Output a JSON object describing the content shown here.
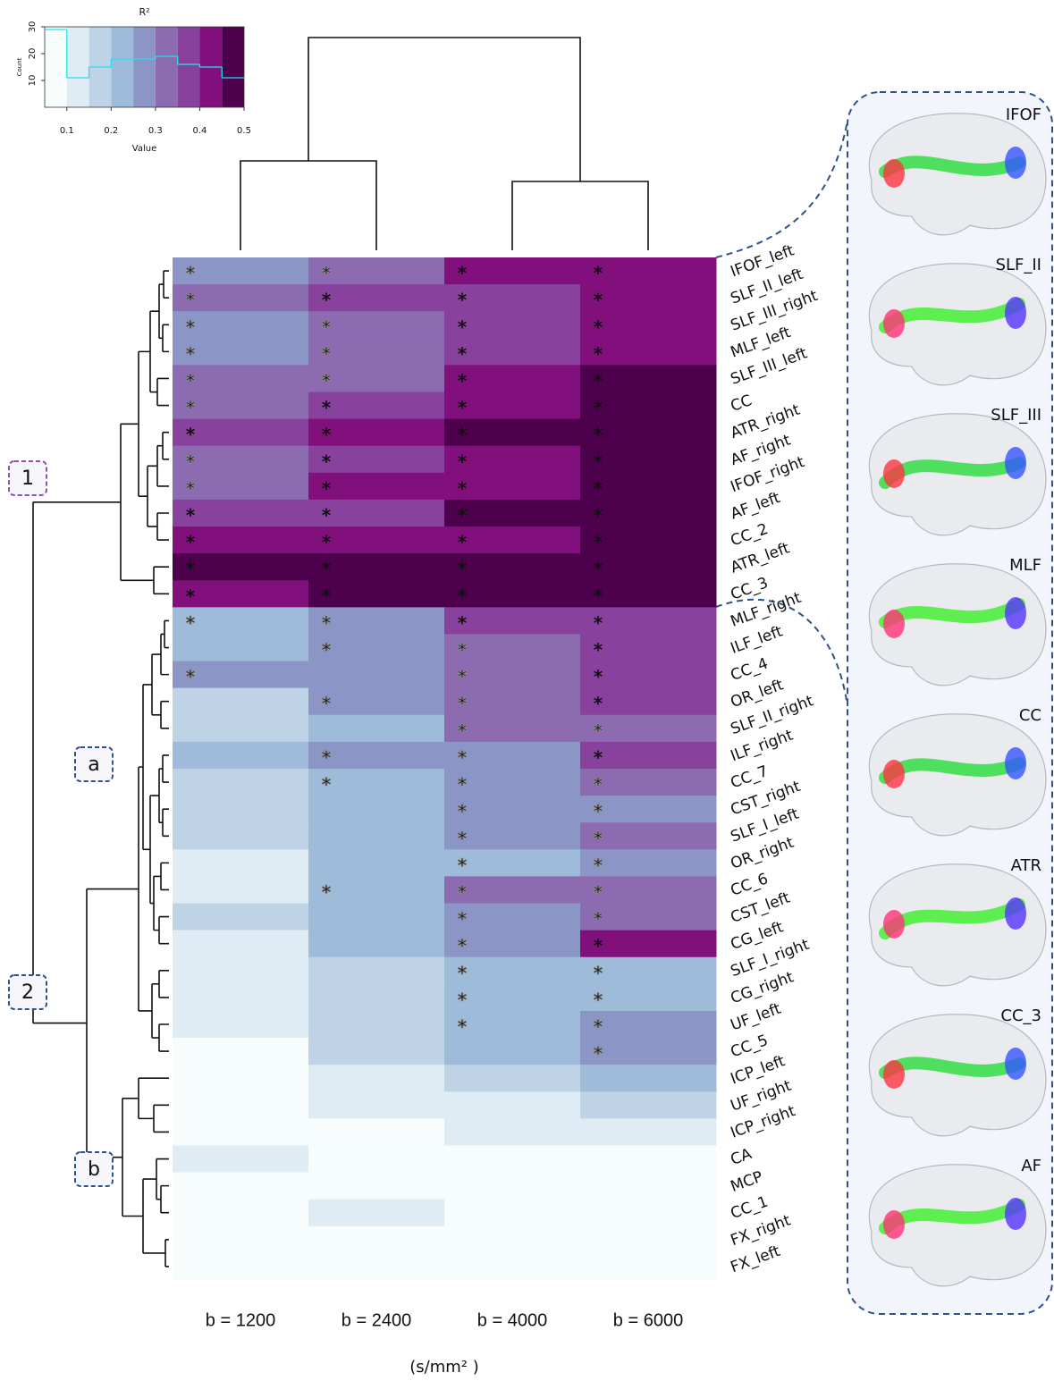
{
  "chart_data": [
    {
      "type": "heatmap",
      "x_categories": [
        "b = 1200",
        "b = 2400",
        "b = 4000",
        "b = 6000"
      ],
      "xlabel": "(s/mm² )",
      "y_categories": [
        "IFOF_left",
        "SLF_II_left",
        "SLF_III_right",
        "MLF_left",
        "SLF_III_left",
        "CC",
        "ATR_right",
        "AF_right",
        "IFOF_right",
        "AF_left",
        "CC_2",
        "ATR_left",
        "CC_3",
        "MLF_right",
        "ILF_left",
        "CC_4",
        "OR_left",
        "SLF_II_right",
        "ILF_right",
        "CC_7",
        "CST_right",
        "SLF_I_left",
        "OR_right",
        "CC_6",
        "CST_left",
        "CG_left",
        "SLF_I_right",
        "CG_right",
        "UF_left",
        "CC_5",
        "ICP_left",
        "UF_right",
        "ICP_right",
        "CA",
        "MCP",
        "CC_1",
        "FX_right",
        "FX_left"
      ],
      "values": [
        [
          0.275,
          0.325,
          0.425,
          0.425
        ],
        [
          0.325,
          0.375,
          0.375,
          0.425
        ],
        [
          0.275,
          0.325,
          0.375,
          0.425
        ],
        [
          0.275,
          0.325,
          0.375,
          0.425
        ],
        [
          0.325,
          0.325,
          0.425,
          0.475
        ],
        [
          0.325,
          0.375,
          0.425,
          0.475
        ],
        [
          0.375,
          0.425,
          0.475,
          0.475
        ],
        [
          0.325,
          0.375,
          0.425,
          0.475
        ],
        [
          0.325,
          0.425,
          0.425,
          0.475
        ],
        [
          0.375,
          0.375,
          0.475,
          0.475
        ],
        [
          0.425,
          0.425,
          0.425,
          0.475
        ],
        [
          0.475,
          0.475,
          0.475,
          0.475
        ],
        [
          0.425,
          0.475,
          0.475,
          0.475
        ],
        [
          0.225,
          0.275,
          0.375,
          0.375
        ],
        [
          0.225,
          0.275,
          0.325,
          0.375
        ],
        [
          0.275,
          0.275,
          0.325,
          0.375
        ],
        [
          0.175,
          0.275,
          0.325,
          0.375
        ],
        [
          0.175,
          0.225,
          0.325,
          0.325
        ],
        [
          0.225,
          0.275,
          0.275,
          0.375
        ],
        [
          0.175,
          0.225,
          0.275,
          0.325
        ],
        [
          0.175,
          0.225,
          0.275,
          0.275
        ],
        [
          0.175,
          0.225,
          0.275,
          0.325
        ],
        [
          0.125,
          0.225,
          0.225,
          0.275
        ],
        [
          0.125,
          0.225,
          0.325,
          0.325
        ],
        [
          0.175,
          0.225,
          0.275,
          0.325
        ],
        [
          0.125,
          0.225,
          0.275,
          0.425
        ],
        [
          0.125,
          0.175,
          0.225,
          0.225
        ],
        [
          0.125,
          0.175,
          0.225,
          0.225
        ],
        [
          0.125,
          0.175,
          0.225,
          0.275
        ],
        [
          0.075,
          0.175,
          0.225,
          0.275
        ],
        [
          0.075,
          0.125,
          0.175,
          0.225
        ],
        [
          0.075,
          0.125,
          0.125,
          0.175
        ],
        [
          0.075,
          0.075,
          0.125,
          0.125
        ],
        [
          0.125,
          0.075,
          0.075,
          0.075
        ],
        [
          0.075,
          0.075,
          0.075,
          0.075
        ],
        [
          0.075,
          0.125,
          0.075,
          0.075
        ],
        [
          0.075,
          0.075,
          0.075,
          0.075
        ],
        [
          0.075,
          0.075,
          0.075,
          0.075
        ]
      ],
      "significant": [
        [
          1,
          1,
          1,
          1
        ],
        [
          1,
          1,
          1,
          1
        ],
        [
          1,
          1,
          1,
          1
        ],
        [
          1,
          1,
          1,
          1
        ],
        [
          1,
          1,
          1,
          1
        ],
        [
          1,
          1,
          1,
          1
        ],
        [
          1,
          1,
          1,
          1
        ],
        [
          1,
          1,
          1,
          1
        ],
        [
          1,
          1,
          1,
          1
        ],
        [
          1,
          1,
          1,
          1
        ],
        [
          1,
          1,
          1,
          1
        ],
        [
          1,
          1,
          1,
          1
        ],
        [
          1,
          1,
          1,
          1
        ],
        [
          1,
          1,
          1,
          1
        ],
        [
          0,
          1,
          1,
          1
        ],
        [
          1,
          0,
          1,
          1
        ],
        [
          0,
          1,
          1,
          1
        ],
        [
          0,
          0,
          1,
          1
        ],
        [
          0,
          1,
          1,
          1
        ],
        [
          0,
          1,
          1,
          1
        ],
        [
          0,
          0,
          1,
          1
        ],
        [
          0,
          0,
          1,
          1
        ],
        [
          0,
          0,
          1,
          1
        ],
        [
          0,
          1,
          1,
          1
        ],
        [
          0,
          0,
          1,
          1
        ],
        [
          0,
          0,
          1,
          1
        ],
        [
          0,
          0,
          1,
          1
        ],
        [
          0,
          0,
          1,
          1
        ],
        [
          0,
          0,
          1,
          1
        ],
        [
          0,
          0,
          0,
          1
        ],
        [
          0,
          0,
          0,
          0
        ],
        [
          0,
          0,
          0,
          0
        ],
        [
          0,
          0,
          0,
          0
        ],
        [
          0,
          0,
          0,
          0
        ],
        [
          0,
          0,
          0,
          0
        ],
        [
          0,
          0,
          0,
          0
        ],
        [
          0,
          0,
          0,
          0
        ],
        [
          0,
          0,
          0,
          0
        ]
      ],
      "marker": "*"
    },
    {
      "type": "histogram",
      "title": "R²",
      "xlabel": "Value",
      "ylabel": "Count",
      "bins": [
        0.05,
        0.1,
        0.15,
        0.2,
        0.25,
        0.3,
        0.35,
        0.4,
        0.45,
        0.5
      ],
      "counts": [
        29,
        11,
        15,
        18,
        18,
        19,
        16,
        15,
        11
      ],
      "colors": [
        "#f7fcfd",
        "#e0ecf4",
        "#bfd3e6",
        "#9ebcda",
        "#8c96c6",
        "#8c6bb1",
        "#88419d",
        "#810f7c",
        "#4d004b"
      ],
      "line_color": "#22e0f0",
      "xlim": [
        0.05,
        0.5
      ],
      "xticks": [
        0.1,
        0.2,
        0.3,
        0.4,
        0.5
      ],
      "ylim": [
        0,
        30
      ],
      "yticks": [
        10,
        20,
        30
      ]
    }
  ],
  "clusters": [
    {
      "label": "1",
      "color": "#8c4fb8"
    },
    {
      "label": "a",
      "color": "#2f4f8f"
    },
    {
      "label": "2",
      "color": "#2f4f8f"
    },
    {
      "label": "b",
      "color": "#2f4f8f"
    }
  ],
  "tract_panel": {
    "labels": [
      "IFOF",
      "SLF_II",
      "SLF_III",
      "MLF",
      "CC",
      "ATR",
      "CC_3",
      "AF"
    ]
  }
}
